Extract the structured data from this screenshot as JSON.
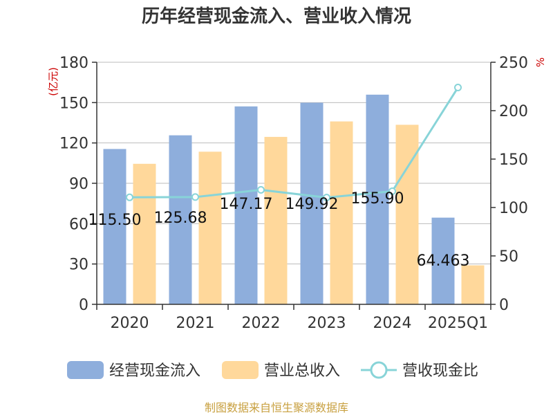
{
  "chart_data": {
    "type": "bar",
    "title": "历年经营现金流入、营业收入情况",
    "categories": [
      "2020",
      "2021",
      "2022",
      "2023",
      "2024",
      "2025Q1"
    ],
    "series": [
      {
        "name": "经营现金流入",
        "kind": "bar",
        "axis": "left",
        "color": "#8eaedc",
        "values": [
          115.5,
          125.68,
          147.17,
          149.92,
          155.9,
          64.463
        ]
      },
      {
        "name": "营业总收入",
        "kind": "bar",
        "axis": "left",
        "color": "#ffd89b",
        "values": [
          104.5,
          113.5,
          124.5,
          136.0,
          133.5,
          29.0
        ]
      },
      {
        "name": "营收现金比",
        "kind": "line",
        "axis": "right",
        "color": "#88d4d8",
        "values": [
          110.5,
          110.8,
          118.2,
          110.3,
          116.8,
          223.9
        ]
      }
    ],
    "data_labels": [
      "115.50",
      "125.68",
      "147.17",
      "149.92",
      "155.90",
      "64.463"
    ],
    "left_axis": {
      "unit": "(亿元)",
      "ticks": [
        "0",
        "30",
        "60",
        "90",
        "120",
        "150",
        "180"
      ],
      "range": [
        0,
        180
      ]
    },
    "right_axis": {
      "unit": "%",
      "ticks": [
        "0",
        "50",
        "100",
        "150",
        "200",
        "250"
      ],
      "range": [
        0,
        250
      ]
    },
    "grid": true,
    "legend_position": "bottom",
    "source": "制图数据来自恒生聚源数据库"
  }
}
